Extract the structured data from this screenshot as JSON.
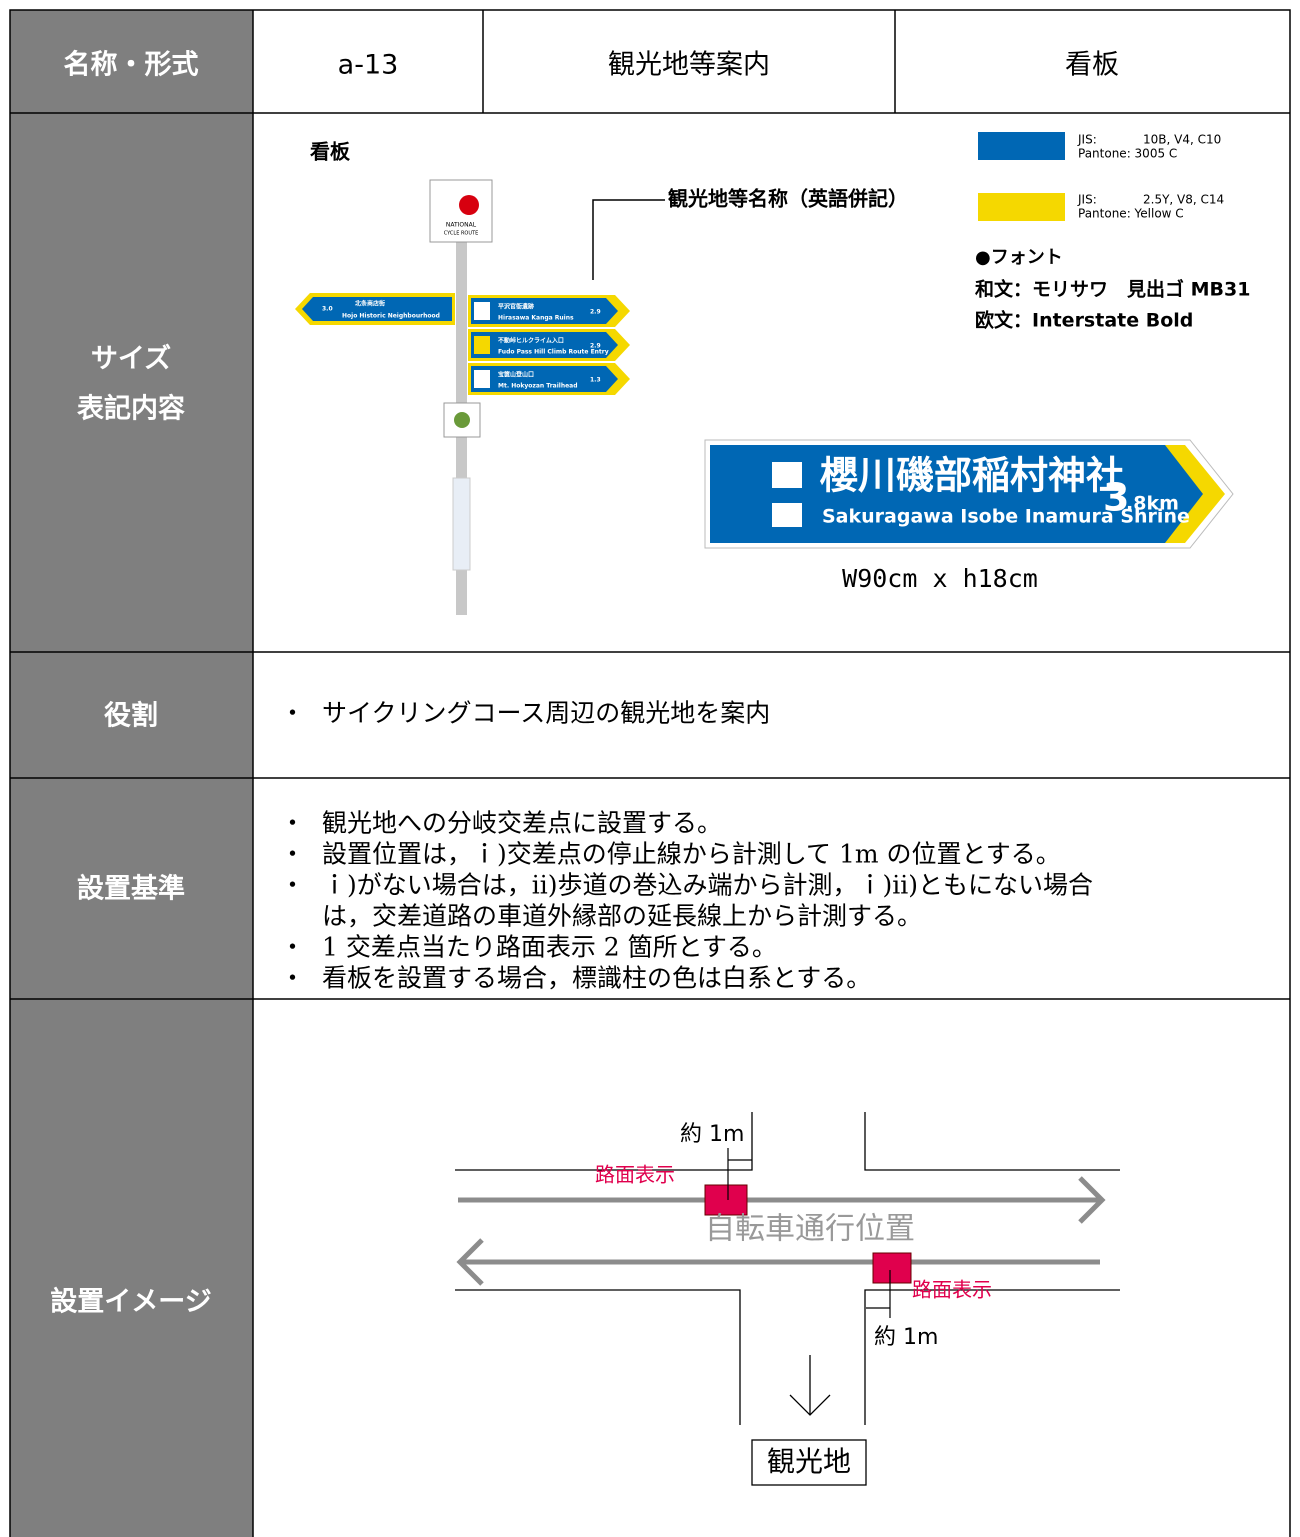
{
  "name_row": {
    "label": "名称・形式",
    "code": "a-13",
    "category": "観光地等案内",
    "kind": "看板"
  },
  "size_row": {
    "label_lines": [
      "サイズ",
      "表記内容"
    ],
    "caption": "看板",
    "callout": "観光地等名称（英語併記）",
    "colors": [
      {
        "jis_label": "JIS:",
        "jis": "10B, V4, C10",
        "pantone": "Pantone: 3005 C"
      },
      {
        "jis_label": "JIS:",
        "jis": "2.5Y, V8, C14",
        "pantone": "Pantone: Yellow C"
      }
    ],
    "font": {
      "heading": "●フォント",
      "japanese": "和文：モリサワ　見出ゴ MB31",
      "latin": "欧文：Interstate Bold"
    },
    "pole": {
      "logo_lines": [
        "NATIONAL",
        "CYCLE ROUTE"
      ],
      "signs": [
        {
          "distance": "3.0",
          "name_ja": "北条商店街",
          "name_en": "Hojo Historic Neighbourhood"
        },
        {
          "distance": "2.9",
          "name_ja": "平沢官衙遺跡",
          "name_en": "Hirasawa Kanga Ruins"
        },
        {
          "distance": "2.9",
          "name_ja": "不動峠ヒルクライム入口",
          "name_en": "Fudo Pass Hill Climb Route Entry"
        },
        {
          "distance": "1.3",
          "name_ja": "宝篋山登山口",
          "name_en": "Mt. Hokyozan Trailhead"
        }
      ]
    },
    "sign": {
      "name_ja": "櫻川磯部稲村神社",
      "name_en": "Sakuragawa Isobe Inamura Shrine",
      "distance_major": "3",
      "distance_minor": ".8km"
    },
    "dimensions": "W90cm x h18cm"
  },
  "role_row": {
    "label": "役割",
    "bullets": [
      "サイクリングコース周辺の観光地を案内"
    ]
  },
  "criteria_row": {
    "label": "設置基準",
    "bullets": [
      "観光地への分岐交差点に設置する。",
      "設置位置は，ｉ)交差点の停止線から計測して 1m の位置とする。",
      "ｉ)がない場合は，ⅱ)歩道の巻込み端から計測，ｉ)ⅱ)ともにない場合",
      "1 交差点当たり路面表示 2 箇所とする。",
      "看板を設置する場合，標識柱の色は白系とする。"
    ],
    "continuation": "は，交差道路の車道外縁部の延長線上から計測する。"
  },
  "image_row": {
    "label": "設置イメージ",
    "distance_top": "約 1m",
    "marking_top": "路面表示",
    "lane": "自転車通行位置",
    "marking_bottom": "路面表示",
    "distance_bottom": "約 1m",
    "destination": "観光地"
  }
}
